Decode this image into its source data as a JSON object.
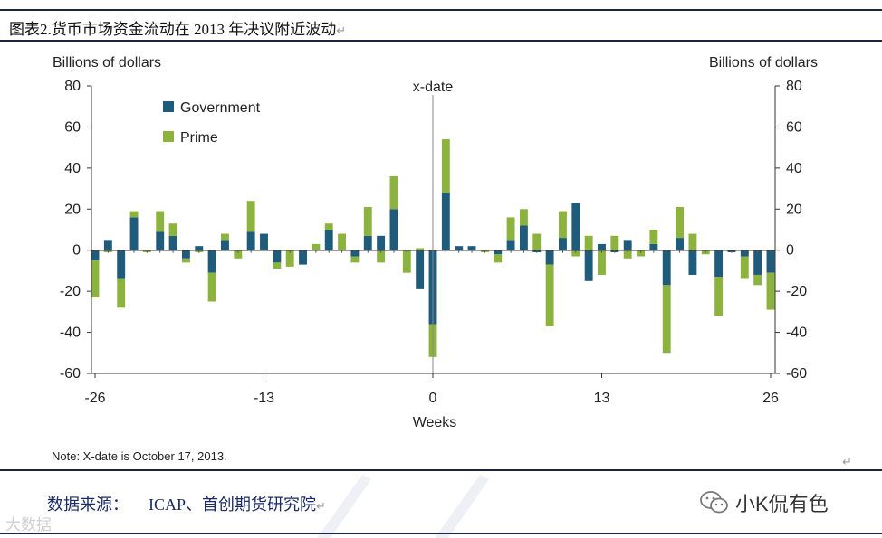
{
  "caption": {
    "text": "图表2.货币市场资金流动在 2013 年决议附近波动",
    "return_mark": "↵"
  },
  "chart_data": {
    "type": "bar",
    "stacked": true,
    "ylabel_left": "Billions of dollars",
    "ylabel_right": "Billions of dollars",
    "xlabel": "Weeks",
    "annotation": "x-date",
    "annotation_x": 0,
    "ylim": [
      -60,
      80
    ],
    "yticks": [
      -60,
      -40,
      -20,
      0,
      20,
      40,
      60,
      80
    ],
    "xlim": [
      -26,
      26
    ],
    "xticks": [
      -26,
      -13,
      0,
      13,
      26
    ],
    "legend": {
      "position": "top-left",
      "entries": [
        "Government",
        "Prime"
      ]
    },
    "colors": {
      "Government": "#1f5b7a",
      "Prime": "#8db33f"
    },
    "series": [
      {
        "name": "Government",
        "x": [
          -26,
          -25,
          -24,
          -23,
          -22,
          -21,
          -20,
          -19,
          -18,
          -17,
          -16,
          -15,
          -14,
          -13,
          -12,
          -11,
          -10,
          -9,
          -8,
          -7,
          -6,
          -5,
          -4,
          -3,
          -2,
          -1,
          0,
          1,
          2,
          3,
          4,
          5,
          6,
          7,
          8,
          9,
          10,
          11,
          12,
          13,
          14,
          15,
          16,
          17,
          18,
          19,
          20,
          21,
          22,
          23,
          24,
          25,
          26
        ],
        "values": [
          -5,
          5,
          -14,
          16,
          0,
          9,
          7,
          -4,
          2,
          -11,
          5,
          0,
          9,
          8,
          -6,
          0,
          -7,
          0,
          10,
          0,
          -3,
          7,
          7,
          20,
          0,
          -19,
          -36,
          28,
          2,
          2,
          0,
          -2,
          5,
          12,
          -1,
          -7,
          6,
          23,
          -15,
          3,
          -1,
          5,
          0,
          3,
          -17,
          6,
          -12,
          0,
          -13,
          -1,
          -3,
          -12,
          -11
        ]
      },
      {
        "name": "Prime",
        "x": [
          -26,
          -25,
          -24,
          -23,
          -22,
          -21,
          -20,
          -19,
          -18,
          -17,
          -16,
          -15,
          -14,
          -13,
          -12,
          -11,
          -10,
          -9,
          -8,
          -7,
          -6,
          -5,
          -4,
          -3,
          -2,
          -1,
          0,
          1,
          2,
          3,
          4,
          5,
          6,
          7,
          8,
          9,
          10,
          11,
          12,
          13,
          14,
          15,
          16,
          17,
          18,
          19,
          20,
          21,
          22,
          23,
          24,
          25,
          26
        ],
        "values": [
          -18,
          -1,
          -14,
          3,
          -1,
          10,
          6,
          -2,
          -1,
          -14,
          3,
          -4,
          15,
          0,
          -3,
          -8,
          0,
          3,
          3,
          8,
          -3,
          14,
          -6,
          16,
          -11,
          1,
          -16,
          26,
          0,
          0,
          -1,
          -4,
          11,
          8,
          8,
          -30,
          13,
          -3,
          7,
          -12,
          7,
          -4,
          -3,
          7,
          -33,
          15,
          8,
          -2,
          -19,
          0,
          -11,
          -5,
          -18
        ]
      }
    ]
  },
  "note": "Note: X-date is October 17, 2013.",
  "return_mark_2": "↵",
  "source": {
    "label": "数据来源：",
    "text": "ICAP、首创期货研究院",
    "return_mark": "↵"
  },
  "wechat": {
    "name": "小K侃有色",
    "icon": "wechat-icon"
  },
  "watermark": "大数据"
}
